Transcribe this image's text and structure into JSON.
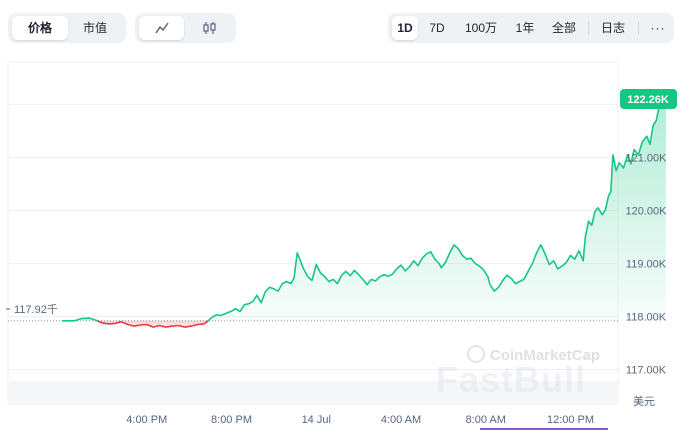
{
  "metric_tabs": {
    "price_label": "价格",
    "market_cap_label": "市值"
  },
  "chart_style_icons": {
    "line": "line-chart-icon",
    "candle": "candlestick-icon"
  },
  "timeframes": {
    "d1": "1D",
    "d7": "7D",
    "m100": "100万",
    "y1": "1年",
    "all": "全部",
    "log": "日志",
    "more": "···"
  },
  "price_badge": "122.26K",
  "open_price_label": "117.92千",
  "currency_label": "美元",
  "watermark": {
    "cmc": "CoinMarketCap",
    "fastbull": "FastBull"
  },
  "colors": {
    "up": "#16c784",
    "down": "#ea3943",
    "badge": "#16c784"
  },
  "chart_data": {
    "type": "area",
    "ylim": [
      116.35,
      122.8
    ],
    "baseline": 117.92,
    "yticks": [
      {
        "label": "117.00K",
        "value": 117
      },
      {
        "label": "118.00K",
        "value": 118
      },
      {
        "label": "119.00K",
        "value": 119
      },
      {
        "label": "120.00K",
        "value": 120
      },
      {
        "label": "121.00K",
        "value": 121
      },
      {
        "label": "122.00K",
        "value": 122
      }
    ],
    "xticks": [
      {
        "label": "4:00 PM",
        "t": 4.0
      },
      {
        "label": "8:00 PM",
        "t": 8.0
      },
      {
        "label": "14 Jul",
        "t": 12.0
      },
      {
        "label": "4:00 AM",
        "t": 16.0
      },
      {
        "label": "8:00 AM",
        "t": 20.0
      },
      {
        "label": "12:00 PM",
        "t": 24.0
      }
    ],
    "t_range": [
      0.0,
      26.1
    ],
    "series": [
      {
        "values": [
          [
            0.0,
            117.92
          ],
          [
            0.6,
            117.92
          ],
          [
            0.9,
            117.96
          ],
          [
            1.3,
            117.97
          ],
          [
            1.6,
            117.93
          ],
          [
            1.9,
            117.88
          ],
          [
            2.2,
            117.86
          ],
          [
            2.5,
            117.87
          ],
          [
            2.8,
            117.9
          ],
          [
            3.1,
            117.85
          ],
          [
            3.4,
            117.82
          ],
          [
            3.7,
            117.84
          ],
          [
            4.0,
            117.85
          ],
          [
            4.3,
            117.8
          ],
          [
            4.6,
            117.83
          ],
          [
            4.9,
            117.8
          ],
          [
            5.2,
            117.82
          ],
          [
            5.5,
            117.83
          ],
          [
            5.8,
            117.8
          ],
          [
            6.1,
            117.82
          ],
          [
            6.4,
            117.85
          ],
          [
            6.7,
            117.86
          ],
          [
            6.9,
            117.92
          ],
          [
            7.1,
            117.99
          ],
          [
            7.3,
            118.03
          ],
          [
            7.5,
            118.02
          ],
          [
            7.8,
            118.07
          ],
          [
            8.0,
            118.1
          ],
          [
            8.2,
            118.15
          ],
          [
            8.4,
            118.09
          ],
          [
            8.6,
            118.22
          ],
          [
            8.8,
            118.24
          ],
          [
            9.0,
            118.28
          ],
          [
            9.2,
            118.4
          ],
          [
            9.4,
            118.26
          ],
          [
            9.6,
            118.47
          ],
          [
            9.8,
            118.55
          ],
          [
            10.0,
            118.52
          ],
          [
            10.2,
            118.48
          ],
          [
            10.4,
            118.62
          ],
          [
            10.6,
            118.66
          ],
          [
            10.8,
            118.62
          ],
          [
            10.95,
            118.72
          ],
          [
            11.1,
            119.2
          ],
          [
            11.25,
            119.05
          ],
          [
            11.4,
            118.9
          ],
          [
            11.6,
            118.75
          ],
          [
            11.8,
            118.68
          ],
          [
            12.0,
            118.98
          ],
          [
            12.2,
            118.82
          ],
          [
            12.4,
            118.75
          ],
          [
            12.6,
            118.66
          ],
          [
            12.8,
            118.7
          ],
          [
            13.0,
            118.62
          ],
          [
            13.2,
            118.78
          ],
          [
            13.4,
            118.85
          ],
          [
            13.6,
            118.77
          ],
          [
            13.8,
            118.87
          ],
          [
            14.0,
            118.79
          ],
          [
            14.2,
            118.7
          ],
          [
            14.4,
            118.6
          ],
          [
            14.6,
            118.7
          ],
          [
            14.8,
            118.67
          ],
          [
            15.0,
            118.75
          ],
          [
            15.2,
            118.79
          ],
          [
            15.4,
            118.76
          ],
          [
            15.6,
            118.8
          ],
          [
            15.8,
            118.9
          ],
          [
            16.0,
            118.97
          ],
          [
            16.2,
            118.86
          ],
          [
            16.4,
            118.94
          ],
          [
            16.6,
            119.05
          ],
          [
            16.8,
            118.96
          ],
          [
            17.0,
            119.1
          ],
          [
            17.2,
            119.18
          ],
          [
            17.4,
            119.22
          ],
          [
            17.6,
            119.08
          ],
          [
            17.8,
            119.0
          ],
          [
            17.9,
            118.92
          ],
          [
            18.1,
            119.02
          ],
          [
            18.3,
            119.2
          ],
          [
            18.5,
            119.35
          ],
          [
            18.7,
            119.28
          ],
          [
            18.9,
            119.15
          ],
          [
            19.1,
            119.08
          ],
          [
            19.3,
            119.1
          ],
          [
            19.5,
            119.0
          ],
          [
            19.7,
            118.95
          ],
          [
            19.9,
            118.88
          ],
          [
            20.1,
            118.75
          ],
          [
            20.2,
            118.6
          ],
          [
            20.4,
            118.48
          ],
          [
            20.6,
            118.55
          ],
          [
            20.8,
            118.68
          ],
          [
            21.0,
            118.78
          ],
          [
            21.2,
            118.72
          ],
          [
            21.4,
            118.62
          ],
          [
            21.6,
            118.66
          ],
          [
            21.8,
            118.7
          ],
          [
            22.0,
            118.85
          ],
          [
            22.2,
            119.0
          ],
          [
            22.4,
            119.2
          ],
          [
            22.6,
            119.35
          ],
          [
            22.8,
            119.18
          ],
          [
            23.0,
            118.98
          ],
          [
            23.2,
            119.05
          ],
          [
            23.4,
            118.9
          ],
          [
            23.6,
            118.95
          ],
          [
            23.8,
            119.02
          ],
          [
            24.0,
            119.15
          ],
          [
            24.2,
            119.08
          ],
          [
            24.4,
            119.24
          ],
          [
            24.6,
            119.05
          ],
          [
            24.7,
            119.5
          ],
          [
            24.85,
            119.8
          ],
          [
            25.0,
            119.72
          ],
          [
            25.15,
            119.98
          ],
          [
            25.3,
            120.05
          ],
          [
            25.5,
            119.92
          ],
          [
            25.65,
            120.02
          ],
          [
            25.8,
            120.28
          ],
          [
            25.9,
            120.35
          ],
          [
            26.0,
            121.05
          ]
        ]
      },
      {
        "values": [
          [
            26.0,
            121.05
          ],
          [
            26.15,
            120.75
          ],
          [
            26.3,
            120.9
          ],
          [
            26.5,
            120.8
          ],
          [
            26.7,
            121.05
          ],
          [
            26.85,
            120.88
          ],
          [
            27.0,
            121.15
          ],
          [
            27.2,
            121.05
          ],
          [
            27.4,
            121.3
          ],
          [
            27.6,
            121.4
          ],
          [
            27.75,
            121.25
          ],
          [
            27.9,
            121.6
          ],
          [
            28.05,
            121.7
          ],
          [
            28.2,
            122.0
          ],
          [
            28.35,
            122.08
          ],
          [
            28.5,
            122.26
          ]
        ]
      }
    ]
  }
}
